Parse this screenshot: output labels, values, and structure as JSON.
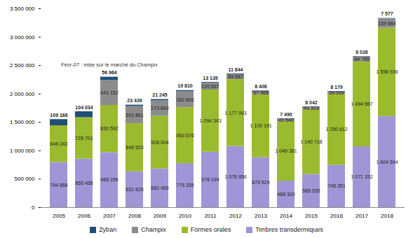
{
  "chart_data": {
    "type": "bar",
    "stacked": true,
    "data_labels": true,
    "grid": false,
    "legend": "bottom",
    "categories": [
      "2005",
      "2006",
      "2007",
      "2008",
      "2009",
      "2010",
      "2011",
      "2012",
      "2013",
      "2014",
      "2015",
      "2016",
      "2017",
      "2018"
    ],
    "ylim": [
      0,
      3500000
    ],
    "yticks": [
      0,
      {
        "value": 500000,
        "label": "500 000"
      },
      {
        "value": 1000000,
        "label": "1 000 000"
      },
      {
        "value": 1500000,
        "label": "1 500 000"
      },
      {
        "value": 2000000,
        "label": "2 000 000"
      },
      {
        "value": 2500000,
        "label": "2 500 000"
      },
      {
        "value": 3000000,
        "label": "3 000 000"
      },
      {
        "value": 3500000,
        "label": "3 500 000"
      }
    ],
    "annotations": [
      {
        "text": "Févr-07 : mise sur le marché du Champix",
        "x": "2007"
      }
    ],
    "series": [
      {
        "name": "Zyban",
        "color": "#1f4e79",
        "values": [
          109166,
          104034,
          56964,
          23439,
          21245,
          19810,
          13139,
          11844,
          8408,
          7490,
          8042,
          8179,
          8026,
          7577
        ],
        "value_labels": [
          "109 166",
          "104 034",
          "56 964",
          "23 439",
          "21 245",
          "19 810",
          "13 139",
          "11 844",
          "8 408",
          "7 490",
          "8 042",
          "8 179",
          "8 026",
          "7 577"
        ]
      },
      {
        "name": "Champix",
        "color": "#8c8c8c",
        "values": [
          null,
          null,
          441152,
          302861,
          273849,
          282806,
          120697,
          89687,
          57365,
          41540,
          41313,
          39009,
          84765,
          159684
        ],
        "value_labels": [
          null,
          null,
          "441 152",
          "302 861",
          "273 849",
          "282 806",
          "120 697",
          "89 687",
          "57 365",
          "41 540",
          "41 313",
          "39 009",
          "84 765",
          "159 684"
        ]
      },
      {
        "name": "Formes orales",
        "color": "#9bbb2e",
        "values": [
          646242,
          728701,
          830592,
          846523,
          926004,
          983676,
          1094343,
          1177093,
          1109191,
          1049381,
          1140718,
          1250612,
          1494567,
          1558936
        ],
        "value_labels": [
          "646 242",
          "728 701",
          "830 592",
          "846 523",
          "926 004",
          "983 676",
          "1 094 343",
          "1 177 093",
          "1 109 191",
          "1 049 381",
          "1 140 718",
          "1 250 612",
          "1 494 567",
          "1 558 936"
        ]
      },
      {
        "name": "Timbres transdermiques",
        "color": "#a095d6",
        "values": [
          794858,
          855458,
          968296,
          631828,
          682459,
          775335,
          976199,
          1076956,
          879529,
          468320,
          585535,
          746351,
          1071332,
          1604594
        ],
        "value_labels": [
          "794 858",
          "855 458",
          "968 296",
          "631 828",
          "682 459",
          "775 335",
          "976 199",
          "1 076 956",
          "879 529",
          "468 320",
          "585 535",
          "746 351",
          "1 071 332",
          "1 604 594"
        ]
      }
    ]
  }
}
